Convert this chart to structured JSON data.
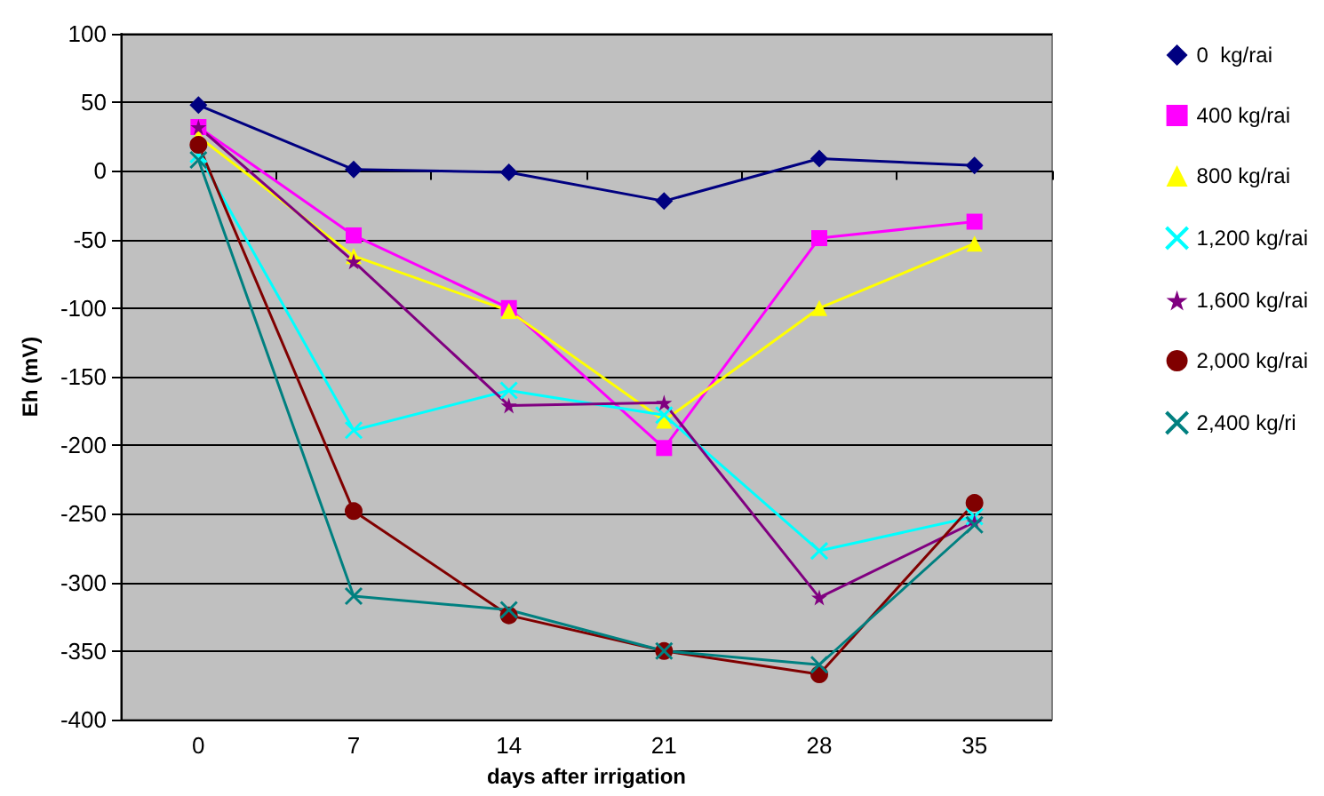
{
  "chart_data": {
    "type": "line",
    "xlabel": "days after irrigation",
    "ylabel": "Eh (mV)",
    "categories": [
      "0",
      "7",
      "14",
      "21",
      "28",
      "35"
    ],
    "series": [
      {
        "name": "0  kg/rai",
        "color": "#000080",
        "marker": "diamond",
        "values": [
          48,
          1,
          -1,
          -22,
          9,
          4
        ]
      },
      {
        "name": "400 kg/rai",
        "color": "#ff00ff",
        "marker": "square",
        "values": [
          32,
          -47,
          -100,
          -202,
          -49,
          -37
        ]
      },
      {
        "name": "800 kg/rai",
        "color": "#ffff00",
        "marker": "triangle",
        "values": [
          25,
          -62,
          -102,
          -182,
          -100,
          -53
        ]
      },
      {
        "name": "1,200 kg/rai",
        "color": "#00ffff",
        "marker": "cross",
        "values": [
          12,
          -189,
          -160,
          -178,
          -277,
          -252
        ]
      },
      {
        "name": "1,600 kg/rai",
        "color": "#800080",
        "marker": "star",
        "values": [
          32,
          -66,
          -171,
          -169,
          -311,
          -256
        ]
      },
      {
        "name": "2,000 kg/rai",
        "color": "#800000",
        "marker": "circle",
        "values": [
          19,
          -248,
          -324,
          -350,
          -367,
          -242
        ]
      },
      {
        "name": "2,400 kg/ri",
        "color": "#008080",
        "marker": "cross",
        "values": [
          8,
          -310,
          -320,
          -350,
          -360,
          -258
        ]
      }
    ],
    "ylim": [
      -400,
      100
    ],
    "yticks": [
      -400,
      -350,
      -300,
      -250,
      -200,
      -150,
      -100,
      -50,
      0,
      50,
      100
    ],
    "grid": "y",
    "legend": "right",
    "line_style": "solid"
  }
}
